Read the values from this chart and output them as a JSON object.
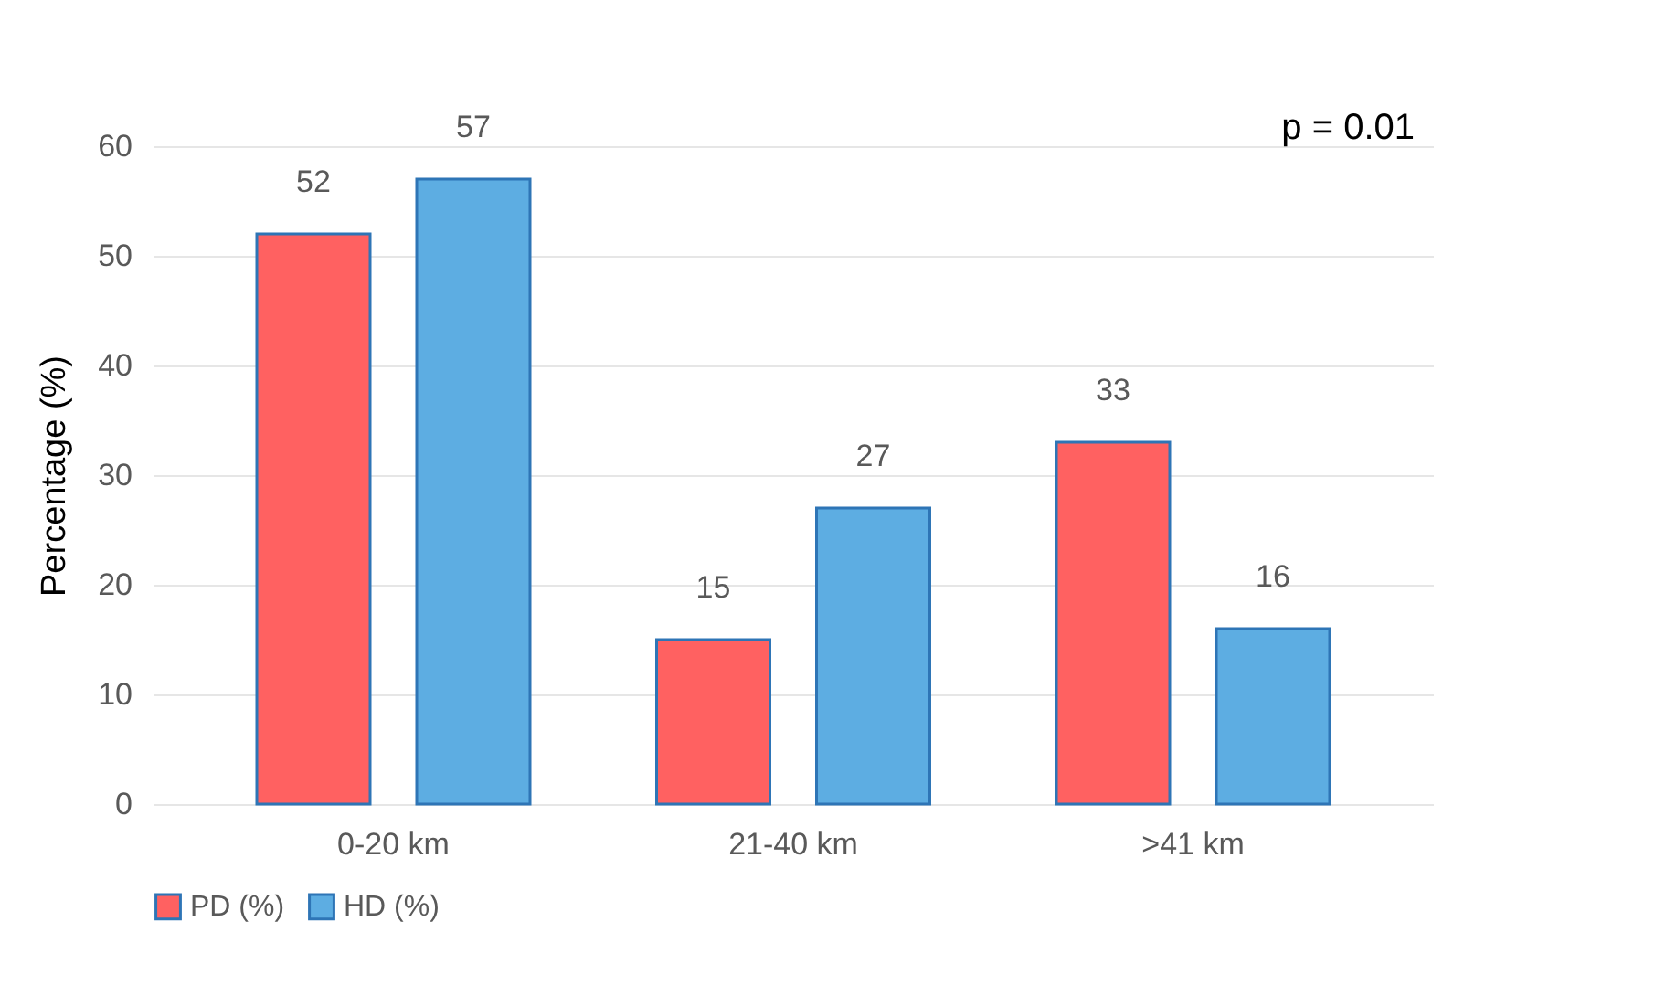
{
  "chart_data": {
    "type": "bar",
    "ylabel": "Percentage (%)",
    "categories": [
      "0-20 km",
      "21-40 km",
      ">41 km"
    ],
    "series": [
      {
        "name": "PD (%)",
        "color": "#ff6161",
        "values": [
          52,
          15,
          33
        ]
      },
      {
        "name": "HD (%)",
        "color": "#5dade2",
        "values": [
          57,
          27,
          16
        ]
      }
    ],
    "ylim": [
      0,
      60
    ],
    "yticks": [
      0,
      10,
      20,
      30,
      40,
      50,
      60
    ],
    "grid": "y",
    "legend": "bottom",
    "data_labels": true,
    "annotations": [
      "p = 0.01"
    ]
  }
}
